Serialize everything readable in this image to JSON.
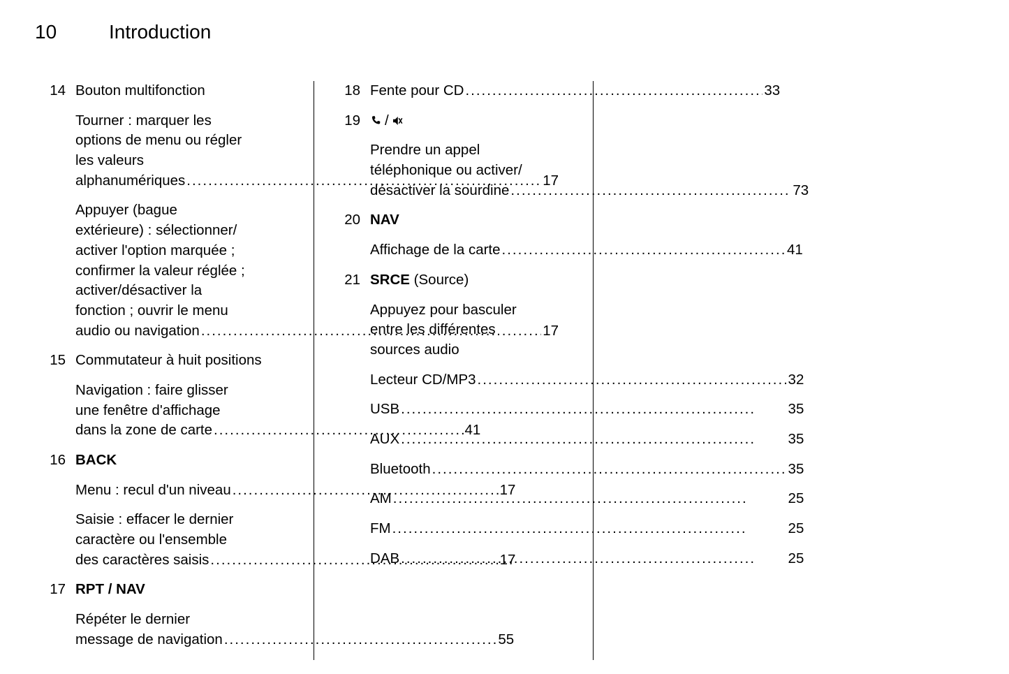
{
  "page_number": "10",
  "section_title": "Introduction",
  "dot_fill": "..................................................................",
  "columns": [
    {
      "entries": [
        {
          "num": "14",
          "title": "Bouton multifonction",
          "title_bold": false,
          "subs": [
            {
              "lines": [
                "Tourner : marquer les",
                "options de menu ou régler",
                "les valeurs"
              ],
              "last": "alphanumériques",
              "page": "17"
            },
            {
              "lines": [
                "Appuyer (bague",
                "extérieure) : sélectionner/",
                "activer l'option marquée ;",
                "confirmer la valeur réglée ;",
                "activer/désactiver la",
                "fonction ; ouvrir le menu"
              ],
              "last": "audio ou navigation",
              "page": "17"
            }
          ]
        },
        {
          "num": "15",
          "title": "Commutateur à huit positions",
          "title_bold": false,
          "subs": [
            {
              "lines": [
                "Navigation : faire glisser",
                "une fenêtre d'affichage"
              ],
              "last": "dans la zone de carte",
              "page": "41"
            }
          ]
        },
        {
          "num": "16",
          "title": "BACK",
          "title_bold": true,
          "subs": [
            {
              "lines": [],
              "last": "Menu : recul d'un niveau",
              "page": "17"
            },
            {
              "lines": [
                "Saisie : effacer le dernier",
                "caractère ou l'ensemble"
              ],
              "last": "des caractères saisis",
              "page": "17"
            }
          ]
        },
        {
          "num": "17",
          "title": "RPT / NAV",
          "title_bold": true,
          "subs": [
            {
              "lines": [
                "Répéter le dernier"
              ],
              "last": "message de navigation",
              "page": "55"
            }
          ]
        }
      ]
    },
    {
      "entries": [
        {
          "num": "18",
          "title_is_leader": true,
          "title": "Fente pour CD",
          "title_page": "33",
          "subs": []
        },
        {
          "num": "19",
          "title_icon": true,
          "subs": [
            {
              "lines": [
                "Prendre un appel",
                "téléphonique ou activer/"
              ],
              "last": "désactiver la sourdine",
              "page": "73"
            }
          ]
        },
        {
          "num": "20",
          "title": "NAV",
          "title_bold": true,
          "subs": [
            {
              "lines": [],
              "last": "Affichage de la carte",
              "page": "41"
            }
          ]
        },
        {
          "num": "21",
          "title_bold_part": "SRCE",
          "title_rest": " (Source)",
          "subs": [
            {
              "lines": [
                "Appuyez pour basculer",
                "entre les différentes",
                "sources audio"
              ],
              "no_page": true
            },
            {
              "lines": [],
              "last": "Lecteur CD/MP3",
              "page": "32"
            },
            {
              "lines": [],
              "last": "USB",
              "page": "35"
            },
            {
              "lines": [],
              "last": "AUX",
              "page": "35"
            },
            {
              "lines": [],
              "last": "Bluetooth",
              "page": "35"
            },
            {
              "lines": [],
              "last": "AM",
              "page": "25"
            },
            {
              "lines": [],
              "last": "FM",
              "page": "25"
            },
            {
              "lines": [],
              "last": "DAB",
              "page": "25"
            }
          ]
        }
      ]
    }
  ]
}
